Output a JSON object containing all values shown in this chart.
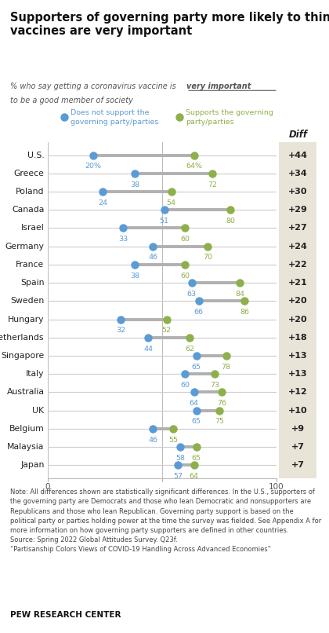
{
  "title": "Supporters of governing party more likely to think\nvaccines are very important",
  "subtitle_pre": "% who say getting a coronavirus vaccine is ",
  "subtitle_underline": "very important",
  "subtitle_post": " to be a good\nmember of society",
  "countries": [
    "U.S.",
    "Greece",
    "Poland",
    "Canada",
    "Israel",
    "Germany",
    "France",
    "Spain",
    "Sweden",
    "Hungary",
    "Netherlands",
    "Singapore",
    "Italy",
    "Australia",
    "UK",
    "Belgium",
    "Malaysia",
    "Japan"
  ],
  "non_support": [
    20,
    38,
    24,
    51,
    33,
    46,
    38,
    63,
    66,
    32,
    44,
    65,
    60,
    64,
    65,
    46,
    58,
    57
  ],
  "support": [
    64,
    72,
    54,
    80,
    60,
    70,
    60,
    84,
    86,
    52,
    62,
    78,
    73,
    76,
    75,
    55,
    65,
    64
  ],
  "diff": [
    "+44",
    "+34",
    "+30",
    "+29",
    "+27",
    "+24",
    "+22",
    "+21",
    "+20",
    "+20",
    "+18",
    "+13",
    "+13",
    "+12",
    "+10",
    "+9",
    "+7",
    "+7"
  ],
  "non_support_color": "#5b9bd5",
  "support_color": "#8db04a",
  "diff_col_bg": "#e8e4d8",
  "legend_non": "Does not support the\ngoverning party/parties",
  "legend_sup": "Supports the governing\nparty/parties",
  "diff_label": "Diff",
  "note_text": "Note: All differences shown are statistically significant differences. In the U.S., supporters of\nthe governing party are Democrats and those who lean Democratic and nonsupporters are\nRepublicans and those who lean Republican. Governing party support is based on the\npolitical party or parties holding power at the time the survey was fielded. See Appendix A for\nmore information on how governing party supporters are defined in other countries.\nSource: Spring 2022 Global Attitudes Survey. Q23f.\n“Partisanship Colors Views of COVID-19 Handling Across Advanced Economies”",
  "source_label": "PEW RESEARCH CENTER"
}
